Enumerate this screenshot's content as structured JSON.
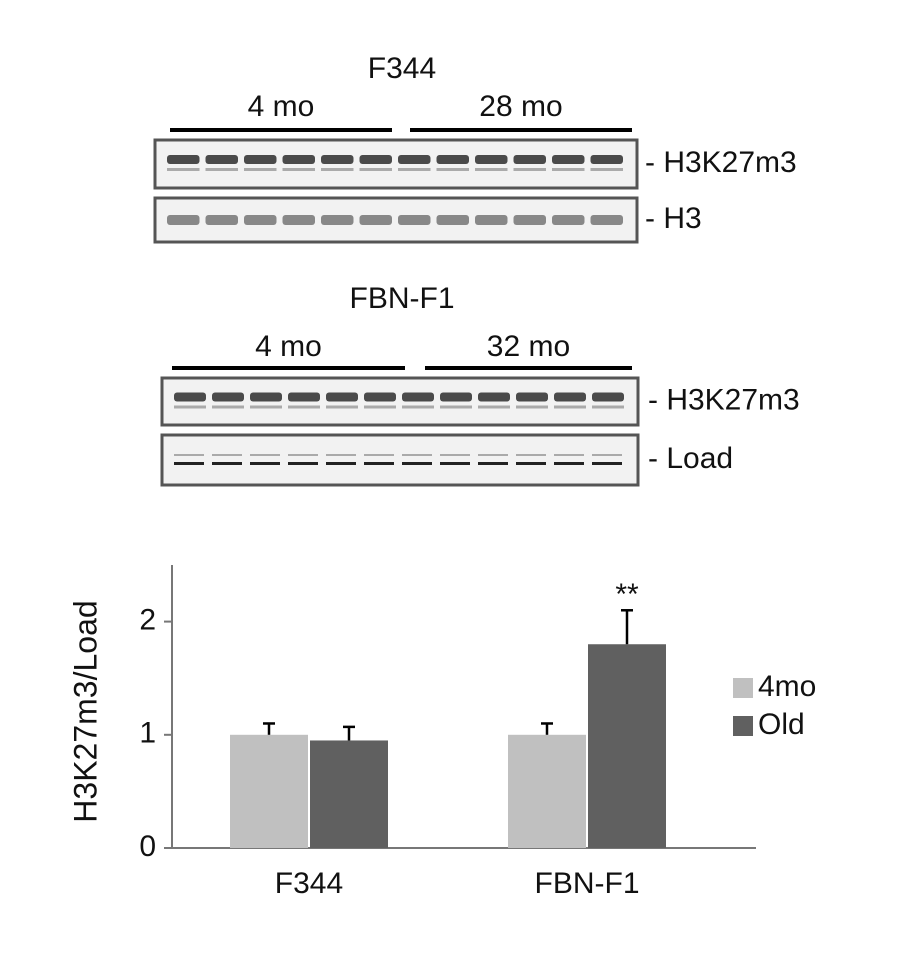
{
  "blots": [
    {
      "strain": "F344",
      "groups": [
        "4 mo",
        "28 mo"
      ],
      "rows": [
        "- H3K27m3",
        "- H3"
      ]
    },
    {
      "strain": "FBN-F1",
      "groups": [
        "4 mo",
        "32 mo"
      ],
      "rows": [
        "- H3K27m3",
        "- Load"
      ]
    }
  ],
  "chart_data": {
    "type": "bar",
    "y_label": "H3K27m3/Load",
    "categories": [
      "F344",
      "FBN-F1"
    ],
    "series": [
      {
        "name": "4mo",
        "color": "#c0c0c0",
        "values": [
          1.0,
          1.0
        ],
        "errors": [
          0.1,
          0.1
        ]
      },
      {
        "name": "Old",
        "color": "#606060",
        "values": [
          0.95,
          1.8
        ],
        "errors": [
          0.12,
          0.3
        ]
      }
    ],
    "annotation": "**",
    "ylim": [
      0,
      2.5
    ],
    "yticks": [
      0,
      1,
      2
    ],
    "legend": "right"
  }
}
